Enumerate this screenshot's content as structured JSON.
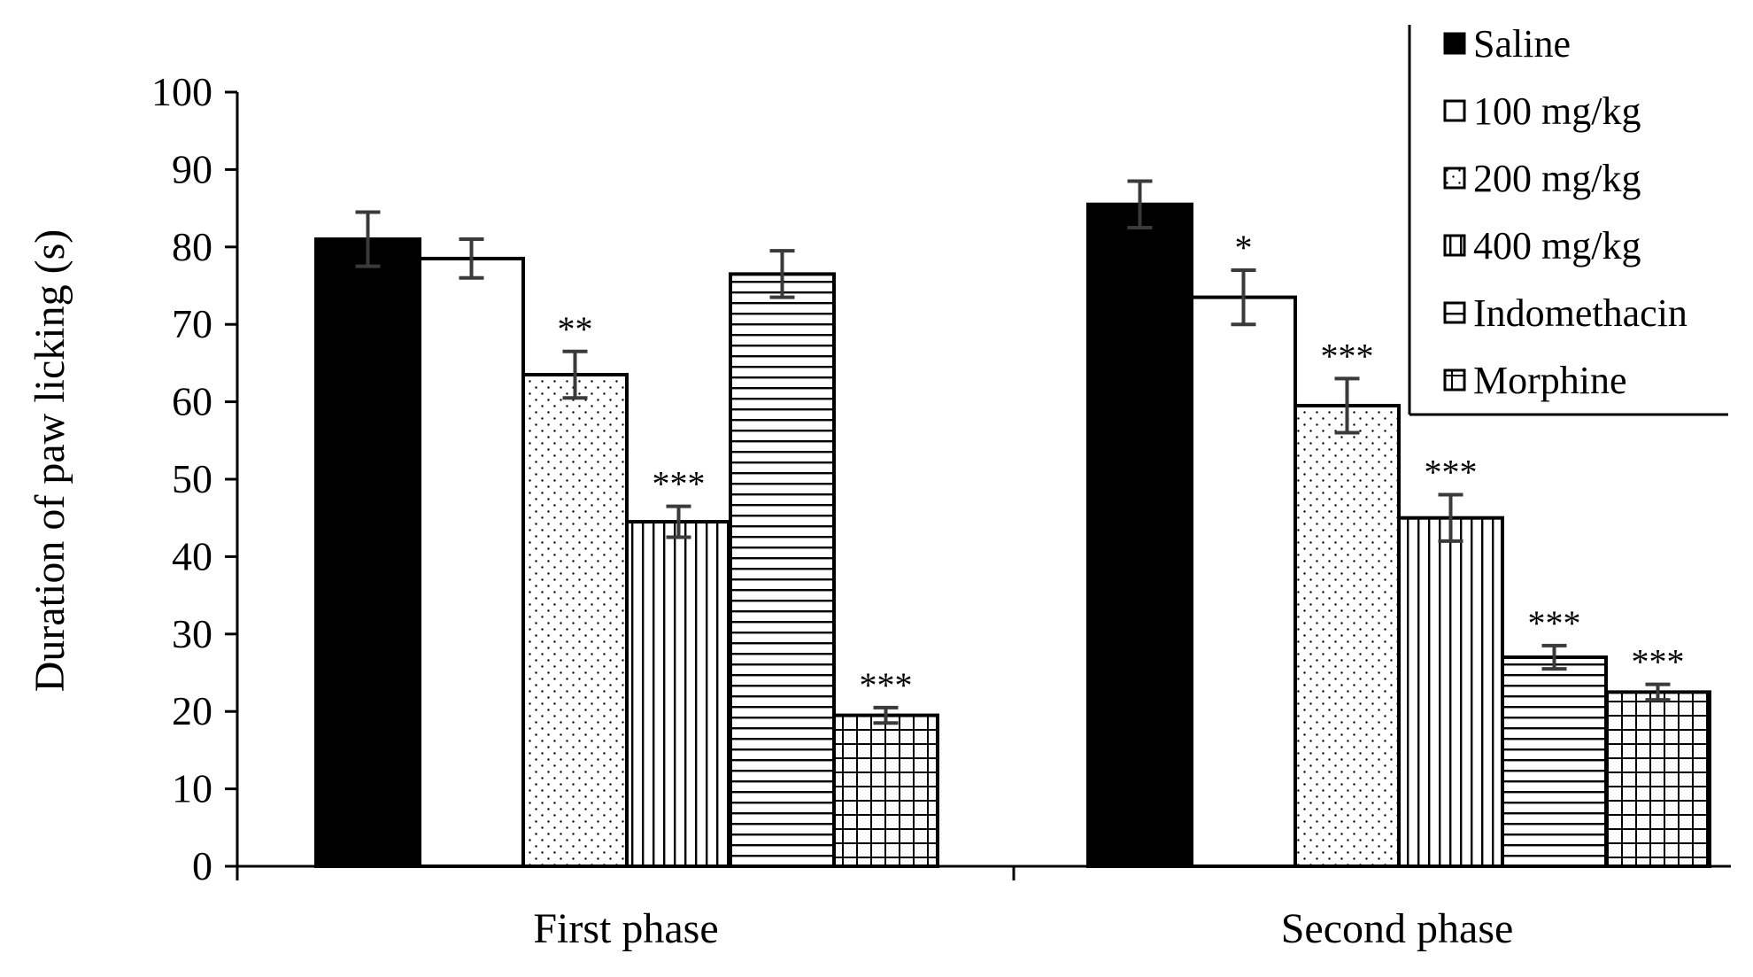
{
  "chart_data": {
    "type": "bar",
    "title": "",
    "xlabel": "",
    "ylabel": "Duration of paw licking (s)",
    "ylim": [
      0,
      100
    ],
    "yticks": [
      "0",
      "10",
      "20",
      "30",
      "40",
      "50",
      "60",
      "70",
      "80",
      "90",
      "100"
    ],
    "categories": [
      "First phase",
      "Second phase"
    ],
    "series": [
      {
        "name": "Saline",
        "pattern": "solid",
        "values": [
          81,
          85.5
        ],
        "errors": [
          3.5,
          3
        ],
        "sig": [
          "",
          ""
        ]
      },
      {
        "name": "100 mg/kg",
        "pattern": "white",
        "values": [
          78.5,
          73.5
        ],
        "errors": [
          2.5,
          3.5
        ],
        "sig": [
          "",
          "*"
        ]
      },
      {
        "name": "200 mg/kg",
        "pattern": "dots",
        "values": [
          63.5,
          59.5
        ],
        "errors": [
          3,
          3.5
        ],
        "sig": [
          "**",
          "***"
        ]
      },
      {
        "name": "400 mg/kg",
        "pattern": "vertical",
        "values": [
          44.5,
          45
        ],
        "errors": [
          2,
          3
        ],
        "sig": [
          "***",
          "***"
        ]
      },
      {
        "name": "Indomethacin",
        "pattern": "horizontal",
        "values": [
          76.5,
          27
        ],
        "errors": [
          3,
          1.5
        ],
        "sig": [
          "",
          "***"
        ]
      },
      {
        "name": "Morphine",
        "pattern": "grid",
        "values": [
          19.5,
          22.5
        ],
        "errors": [
          1,
          1
        ],
        "sig": [
          "***",
          "***"
        ]
      }
    ],
    "legend_position": "top-right",
    "grid": false,
    "colors": {
      "bar_fill": "#ffffff",
      "stroke": "#000000",
      "solid": "#000000",
      "error_bar": "#3a3a3a"
    }
  }
}
